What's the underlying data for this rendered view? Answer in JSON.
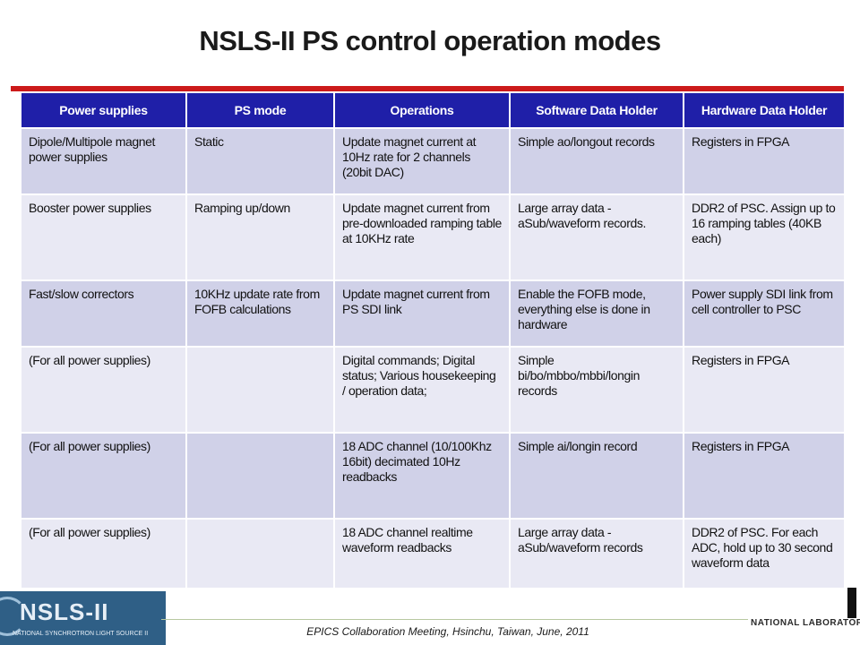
{
  "title": "NSLS-II PS control operation modes",
  "table": {
    "headers": [
      "Power supplies",
      "PS mode",
      "Operations",
      "Software Data Holder",
      "Hardware Data Holder"
    ],
    "rows": [
      [
        "Dipole/Multipole magnet power supplies",
        "Static",
        "Update magnet current at 10Hz rate for 2 channels (20bit DAC)",
        "Simple ao/longout records",
        "Registers in FPGA"
      ],
      [
        "Booster power supplies",
        "Ramping up/down",
        "Update magnet current from pre-downloaded ramping table at 10KHz rate",
        "Large array data - aSub/waveform records.",
        "DDR2 of PSC. Assign up to 16 ramping tables (40KB each)"
      ],
      [
        "Fast/slow correctors",
        "10KHz update rate from FOFB calculations",
        "Update magnet current from PS SDI link",
        "Enable the FOFB mode, everything else is done in hardware",
        "Power supply SDI link from cell controller to PSC"
      ],
      [
        "(For all power supplies)",
        "",
        "Digital commands; Digital status; Various housekeeping / operation data;",
        "Simple bi/bo/mbbo/mbbi/longin records",
        "Registers in FPGA"
      ],
      [
        "(For all power supplies)",
        "",
        "18 ADC channel (10/100Khz 16bit) decimated 10Hz readbacks",
        "Simple ai/longin record",
        "Registers in FPGA"
      ],
      [
        "(For all power supplies)",
        "",
        "18 ADC channel realtime waveform readbacks",
        "Large array data - aSub/waveform records",
        "DDR2 of PSC.  For each ADC, hold up to 30 second waveform data"
      ]
    ]
  },
  "footer": "EPICS Collaboration Meeting, Hsinchu, Taiwan, June, 2011",
  "logos": {
    "left_mark": "NSLS-II",
    "left_sub": "NATIONAL SYNCHROTRON LIGHT SOURCE II",
    "right_text": "NATIONAL LABORATORY"
  },
  "colors": {
    "header_bg": "#1f1fa8",
    "row_bg": "#d0d1e8",
    "row_alt_bg": "#e9e9f4",
    "accent": "#cc1a1a"
  }
}
